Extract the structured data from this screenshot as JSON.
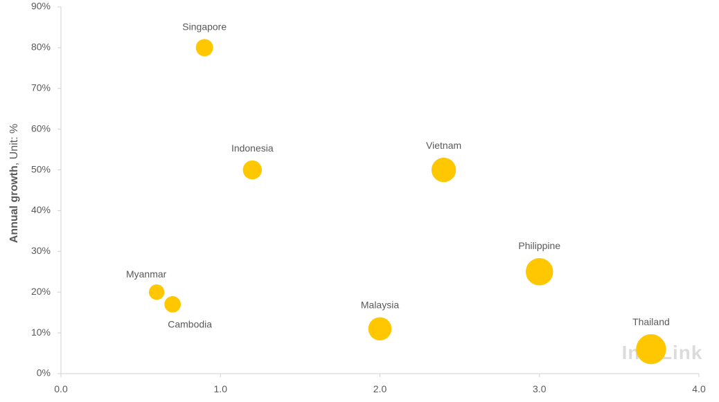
{
  "chart_data": {
    "type": "bubble",
    "ylabel_bold": "Annual growth",
    "ylabel_rest": ", Unit: %",
    "xlim": [
      0,
      4
    ],
    "ylim": [
      0,
      90
    ],
    "x_ticks": [
      0,
      1,
      2,
      3,
      4
    ],
    "x_tick_labels": [
      "0.0",
      "1.0",
      "2.0",
      "3.0",
      "4.0"
    ],
    "y_ticks": [
      0,
      10,
      20,
      30,
      40,
      50,
      60,
      70,
      80,
      90
    ],
    "y_tick_labels": [
      "0%",
      "10%",
      "20%",
      "30%",
      "40%",
      "50%",
      "60%",
      "70%",
      "80%",
      "90%"
    ],
    "grid": false,
    "bubble_color": "#FFC700",
    "watermark": "InfoLink",
    "points": [
      {
        "name": "Singapore",
        "x": 0.9,
        "y": 80,
        "size": 1.0,
        "label_pos": "above"
      },
      {
        "name": "Indonesia",
        "x": 1.2,
        "y": 50,
        "size": 1.2,
        "label_pos": "above"
      },
      {
        "name": "Vietnam",
        "x": 2.4,
        "y": 50,
        "size": 2.0,
        "label_pos": "above"
      },
      {
        "name": "Myanmar",
        "x": 0.6,
        "y": 20,
        "size": 0.8,
        "label_pos": "above-left"
      },
      {
        "name": "Cambodia",
        "x": 0.7,
        "y": 17,
        "size": 0.9,
        "label_pos": "below-right"
      },
      {
        "name": "Malaysia",
        "x": 2.0,
        "y": 11,
        "size": 1.8,
        "label_pos": "above"
      },
      {
        "name": "Philippine",
        "x": 3.0,
        "y": 25,
        "size": 2.5,
        "label_pos": "above"
      },
      {
        "name": "Thailand",
        "x": 3.7,
        "y": 6,
        "size": 3.0,
        "label_pos": "above"
      }
    ]
  }
}
